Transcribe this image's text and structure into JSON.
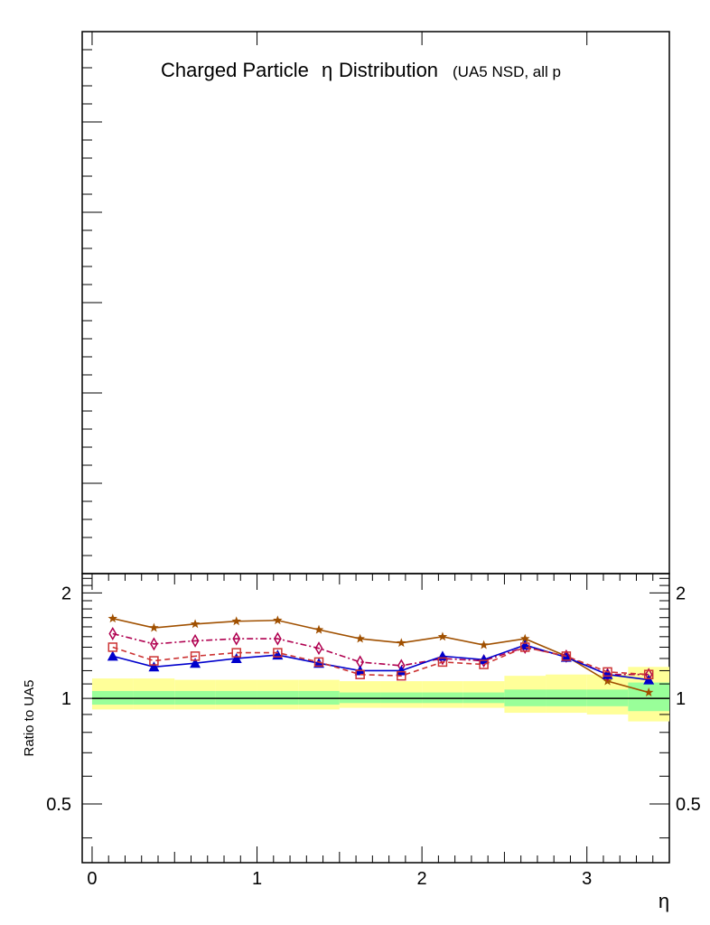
{
  "chart_data": [
    {
      "type": "line",
      "panel": "upper",
      "title": "Charged Particle",
      "title_symbol": "η",
      "title_suffix": "Distribution",
      "subtitle": "(UA5 NSD, all p",
      "series": []
    },
    {
      "type": "line",
      "panel": "ratio",
      "ylabel": "Ratio to UA5",
      "xlabel": "η",
      "xlim": [
        -0.06,
        3.5
      ],
      "ylim": [
        0.34,
        2.27
      ],
      "x_tick_labels": [
        "0",
        "1",
        "2",
        "3"
      ],
      "y_tick_labels": [
        "2",
        "1",
        "0.5"
      ],
      "y_tick_values": [
        2,
        1,
        0.5
      ],
      "x": [
        0.125,
        0.375,
        0.625,
        0.875,
        1.125,
        1.375,
        1.625,
        1.875,
        2.125,
        2.375,
        2.625,
        2.875,
        3.125,
        3.375
      ],
      "reference_line": 1.0,
      "bands": {
        "bins": [
          0,
          0.25,
          0.5,
          0.75,
          1.0,
          1.25,
          1.5,
          1.75,
          2.0,
          2.25,
          2.5,
          2.75,
          3.0,
          3.25,
          3.5
        ],
        "inner": [
          [
            0.96,
            1.05
          ],
          [
            0.96,
            1.05
          ],
          [
            0.96,
            1.05
          ],
          [
            0.96,
            1.05
          ],
          [
            0.96,
            1.05
          ],
          [
            0.96,
            1.05
          ],
          [
            0.97,
            1.04
          ],
          [
            0.97,
            1.04
          ],
          [
            0.97,
            1.04
          ],
          [
            0.97,
            1.04
          ],
          [
            0.95,
            1.06
          ],
          [
            0.95,
            1.06
          ],
          [
            0.95,
            1.06
          ],
          [
            0.92,
            1.11
          ]
        ],
        "outer": [
          [
            0.93,
            1.14
          ],
          [
            0.93,
            1.14
          ],
          [
            0.93,
            1.13
          ],
          [
            0.93,
            1.13
          ],
          [
            0.93,
            1.13
          ],
          [
            0.93,
            1.13
          ],
          [
            0.94,
            1.12
          ],
          [
            0.94,
            1.12
          ],
          [
            0.94,
            1.12
          ],
          [
            0.94,
            1.12
          ],
          [
            0.91,
            1.16
          ],
          [
            0.91,
            1.17
          ],
          [
            0.9,
            1.17
          ],
          [
            0.86,
            1.23
          ]
        ],
        "inner_color": "#99ff99",
        "outer_color": "#ffff99"
      },
      "series": [
        {
          "color": "#a05000",
          "marker": "star",
          "line": "solid",
          "values": [
            1.69,
            1.59,
            1.63,
            1.66,
            1.67,
            1.57,
            1.48,
            1.44,
            1.5,
            1.42,
            1.48,
            1.32,
            1.12,
            1.04
          ]
        },
        {
          "color": "#b00050",
          "marker": "diamond-open",
          "line": "dashdot",
          "values": [
            1.53,
            1.43,
            1.46,
            1.48,
            1.48,
            1.39,
            1.27,
            1.24,
            1.3,
            1.28,
            1.4,
            1.32,
            1.17,
            1.17
          ]
        },
        {
          "color": "#0000cc",
          "marker": "triangle",
          "line": "solid",
          "values": [
            1.32,
            1.23,
            1.26,
            1.3,
            1.33,
            1.26,
            1.2,
            1.2,
            1.32,
            1.29,
            1.42,
            1.31,
            1.17,
            1.13
          ]
        },
        {
          "color": "#cc3333",
          "marker": "square-open",
          "line": "dashed",
          "values": [
            1.4,
            1.28,
            1.32,
            1.35,
            1.35,
            1.27,
            1.17,
            1.16,
            1.27,
            1.25,
            1.4,
            1.32,
            1.19,
            1.17
          ]
        }
      ]
    }
  ]
}
